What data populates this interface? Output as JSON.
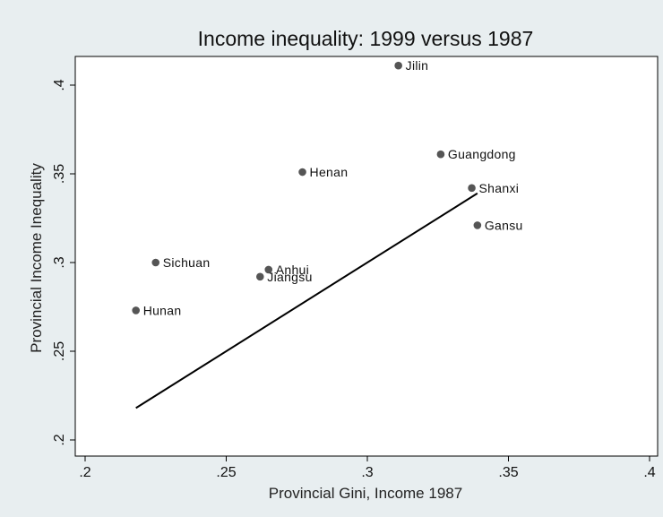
{
  "chart_data": {
    "type": "scatter",
    "title": "Income inequality: 1999 versus 1987",
    "xlabel": "Provincial Gini, Income 1987",
    "ylabel": "Provincial Income Inequality",
    "xlim": [
      0.2,
      0.4
    ],
    "ylim": [
      0.2,
      0.4
    ],
    "x_ticks": [
      {
        "value": 0.2,
        "label": ".2"
      },
      {
        "value": 0.25,
        "label": ".25"
      },
      {
        "value": 0.3,
        "label": ".3"
      },
      {
        "value": 0.35,
        "label": ".35"
      },
      {
        "value": 0.4,
        "label": ".4"
      }
    ],
    "y_ticks": [
      {
        "value": 0.2,
        "label": ".2"
      },
      {
        "value": 0.25,
        "label": ".25"
      },
      {
        "value": 0.3,
        "label": ".3"
      },
      {
        "value": 0.35,
        "label": ".35"
      },
      {
        "value": 0.4,
        "label": ".4"
      }
    ],
    "grid": false,
    "points": [
      {
        "label": "Jilin",
        "x": 0.311,
        "y": 0.411
      },
      {
        "label": "Guangdong",
        "x": 0.326,
        "y": 0.361
      },
      {
        "label": "Henan",
        "x": 0.277,
        "y": 0.351
      },
      {
        "label": "Shanxi",
        "x": 0.337,
        "y": 0.342
      },
      {
        "label": "Gansu",
        "x": 0.339,
        "y": 0.321
      },
      {
        "label": "Sichuan",
        "x": 0.225,
        "y": 0.3
      },
      {
        "label": "Anhui",
        "x": 0.265,
        "y": 0.296
      },
      {
        "label": "Jiangsu",
        "x": 0.262,
        "y": 0.292
      },
      {
        "label": "Hunan",
        "x": 0.218,
        "y": 0.273
      }
    ],
    "fit_line": {
      "x": [
        0.218,
        0.339
      ],
      "y": [
        0.218,
        0.339
      ]
    },
    "colors": {
      "marker": "#555555",
      "line": "#000000",
      "background": "#e8eef0",
      "plot_background": "#ffffff"
    }
  }
}
